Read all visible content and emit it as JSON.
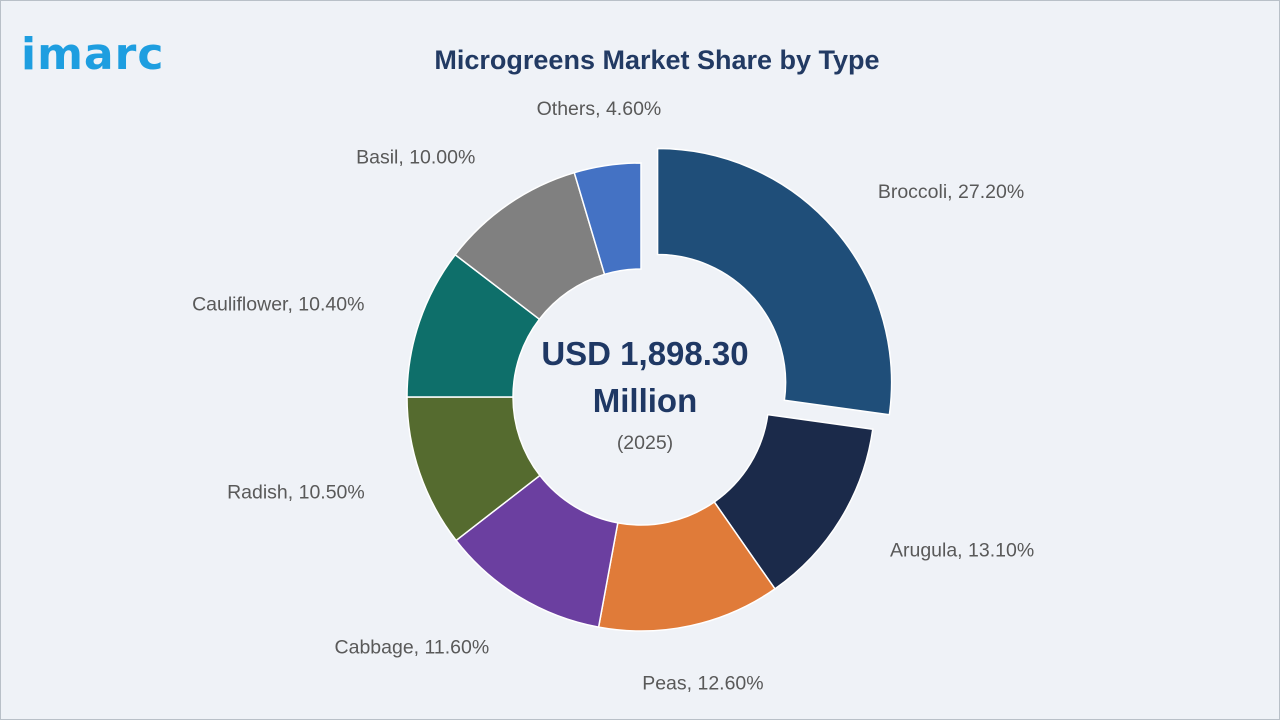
{
  "logo": {
    "text": "imarc",
    "color": "#1e9ee0"
  },
  "title": "Microgreens Market Share by Type",
  "colors": {
    "title": "#223a63",
    "center_text": "#1f3864"
  },
  "chart_data": {
    "type": "pie",
    "title": "Microgreens Market Share by Type",
    "variant": "donut",
    "center_label": {
      "value": "USD 1,898.30",
      "unit": "Million",
      "year": "(2025)"
    },
    "categories": [
      "Broccoli",
      "Arugula",
      "Peas",
      "Cabbage",
      "Radish",
      "Cauliflower",
      "Basil",
      "Others"
    ],
    "values": [
      27.2,
      13.1,
      12.6,
      11.6,
      10.5,
      10.4,
      10.0,
      4.6
    ],
    "labels": [
      "Broccoli, 27.20%",
      "Arugula, 13.10%",
      "Peas, 12.60%",
      "Cabbage, 11.60%",
      "Radish, 10.50%",
      "Cauliflower, 10.40%",
      "Basil, 10.00%",
      "Others, 4.60%"
    ],
    "colors": [
      "#1f4e79",
      "#1b2a4a",
      "#e07b39",
      "#6b3fa0",
      "#556b2f",
      "#0e6f6a",
      "#808080",
      "#4472c4"
    ],
    "exploded": [
      "Broccoli"
    ],
    "legend": "none"
  }
}
